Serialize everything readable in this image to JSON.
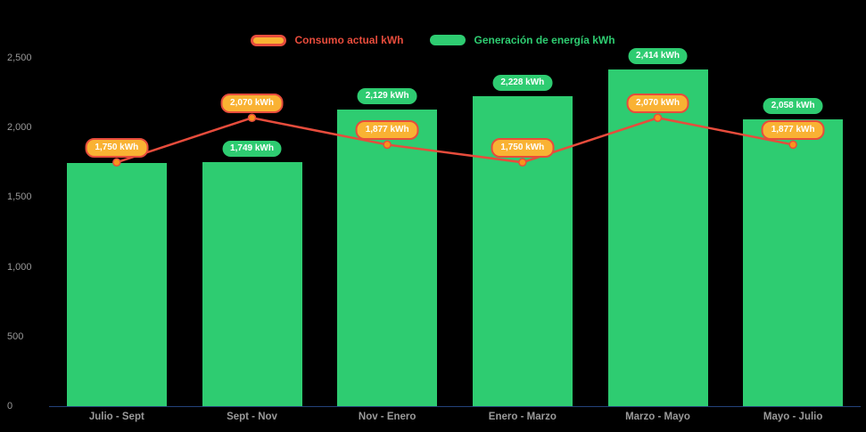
{
  "chart_data": {
    "type": "bar",
    "subtype": "column-and-line-combo",
    "categories": [
      "Julio - Sept",
      "Sept - Nov",
      "Nov - Enero",
      "Enero - Marzo",
      "Marzo - Mayo",
      "Mayo - Julio"
    ],
    "series": [
      {
        "name": "Generación de energía kWh",
        "type": "bar",
        "color": "#2ecc71",
        "values": [
          1743,
          1749,
          2129,
          2228,
          2414,
          2058
        ],
        "labels": [
          "",
          "1,749 kWh",
          "2,129 kWh",
          "2,228 kWh",
          "2,414 kWh",
          "2,058 kWh"
        ],
        "label_bg": "#2ecc71",
        "label_text_color": "#ffffff"
      },
      {
        "name": "Consumo actual kWh",
        "type": "line",
        "color": "#e74c3c",
        "marker_color": "#f7941d",
        "values": [
          1750,
          2070,
          1877,
          1750,
          2070,
          1877
        ],
        "labels": [
          "1,750 kWh",
          "2,070 kWh",
          "1,877 kWh",
          "1,750 kWh",
          "2,070 kWh",
          "1,877 kWh"
        ],
        "label_bg": "#f9b233",
        "label_border": "#e74c3c",
        "label_text_color": "#ffffff"
      }
    ],
    "legend": [
      {
        "label": "Consumo actual kWh",
        "text_color": "#e74c3c",
        "swatch_fill": "#f9b233",
        "swatch_border": "#e74c3c"
      },
      {
        "label": "Generación de energía kWh",
        "text_color": "#2ecc71",
        "swatch_fill": "#2ecc71",
        "swatch_border": "#2ecc71"
      }
    ],
    "title": "",
    "xlabel": "",
    "ylabel": "",
    "ylim": [
      0,
      2500
    ],
    "yticks": [
      "0",
      "500",
      "1,000",
      "1,500",
      "2,000",
      "2,500"
    ],
    "ytick_values": [
      0,
      500,
      1000,
      1500,
      2000,
      2500
    ],
    "legend_position": "top-center",
    "grid": false,
    "background": "#000000",
    "axis_text_color": "#9a9a9a",
    "baseline_color": "#24427a"
  }
}
